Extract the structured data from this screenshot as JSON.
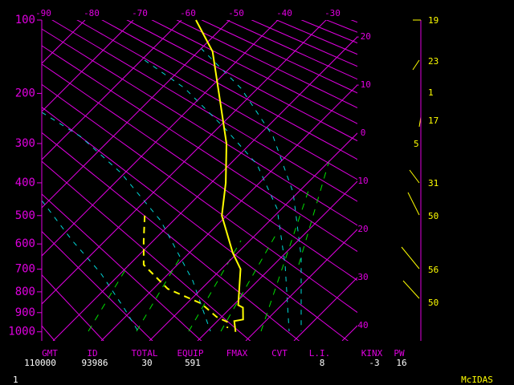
{
  "chart_data": {
    "type": "skewt",
    "ylim": [
      100,
      1050
    ],
    "yticks": [
      100,
      200,
      300,
      400,
      500,
      600,
      700,
      800,
      900,
      1000
    ],
    "xlim": [
      -89,
      -23.5
    ],
    "xticks": [
      -90,
      -80,
      -70,
      -60,
      -50,
      -40,
      -30
    ],
    "xticks_right": [
      -20,
      -10,
      0,
      10,
      20,
      30,
      40
    ],
    "series": [
      {
        "color": "#ffff00",
        "dashed": false,
        "pressure": [
          100,
          137,
          200,
          300,
          400,
          500,
          634,
          700,
          863,
          875,
          935,
          943,
          1000
        ],
        "values": [
          -57,
          -47,
          -37,
          -25,
          -17,
          -11,
          -1,
          4,
          11,
          12.5,
          15,
          13.5,
          16
        ]
      },
      {
        "color": "#ffff00",
        "dashed": true,
        "pressure": [
          500,
          588,
          682,
          786,
          855,
          922,
          950,
          980
        ],
        "values": [
          -27,
          -22,
          -17,
          -7,
          3,
          9,
          12.5,
          13.5
        ]
      }
    ],
    "wind_speeds": [
      19,
      23,
      1,
      17,
      5,
      31,
      50,
      56,
      50
    ],
    "indices": [
      {
        "label": "GMT",
        "value": 110000
      },
      {
        "label": "ID",
        "value": 93986
      },
      {
        "label": "TOTAL",
        "value": 30
      },
      {
        "label": "EQUIP",
        "value": 591
      },
      {
        "label": "FMAX"
      },
      {
        "label": "CVT"
      },
      {
        "label": "L.I.",
        "value": 8
      },
      {
        "label": "KINX",
        "value": -3
      },
      {
        "label": "PW",
        "value": 16
      }
    ],
    "footer_left": 1,
    "footer_right": "McIDAS"
  }
}
